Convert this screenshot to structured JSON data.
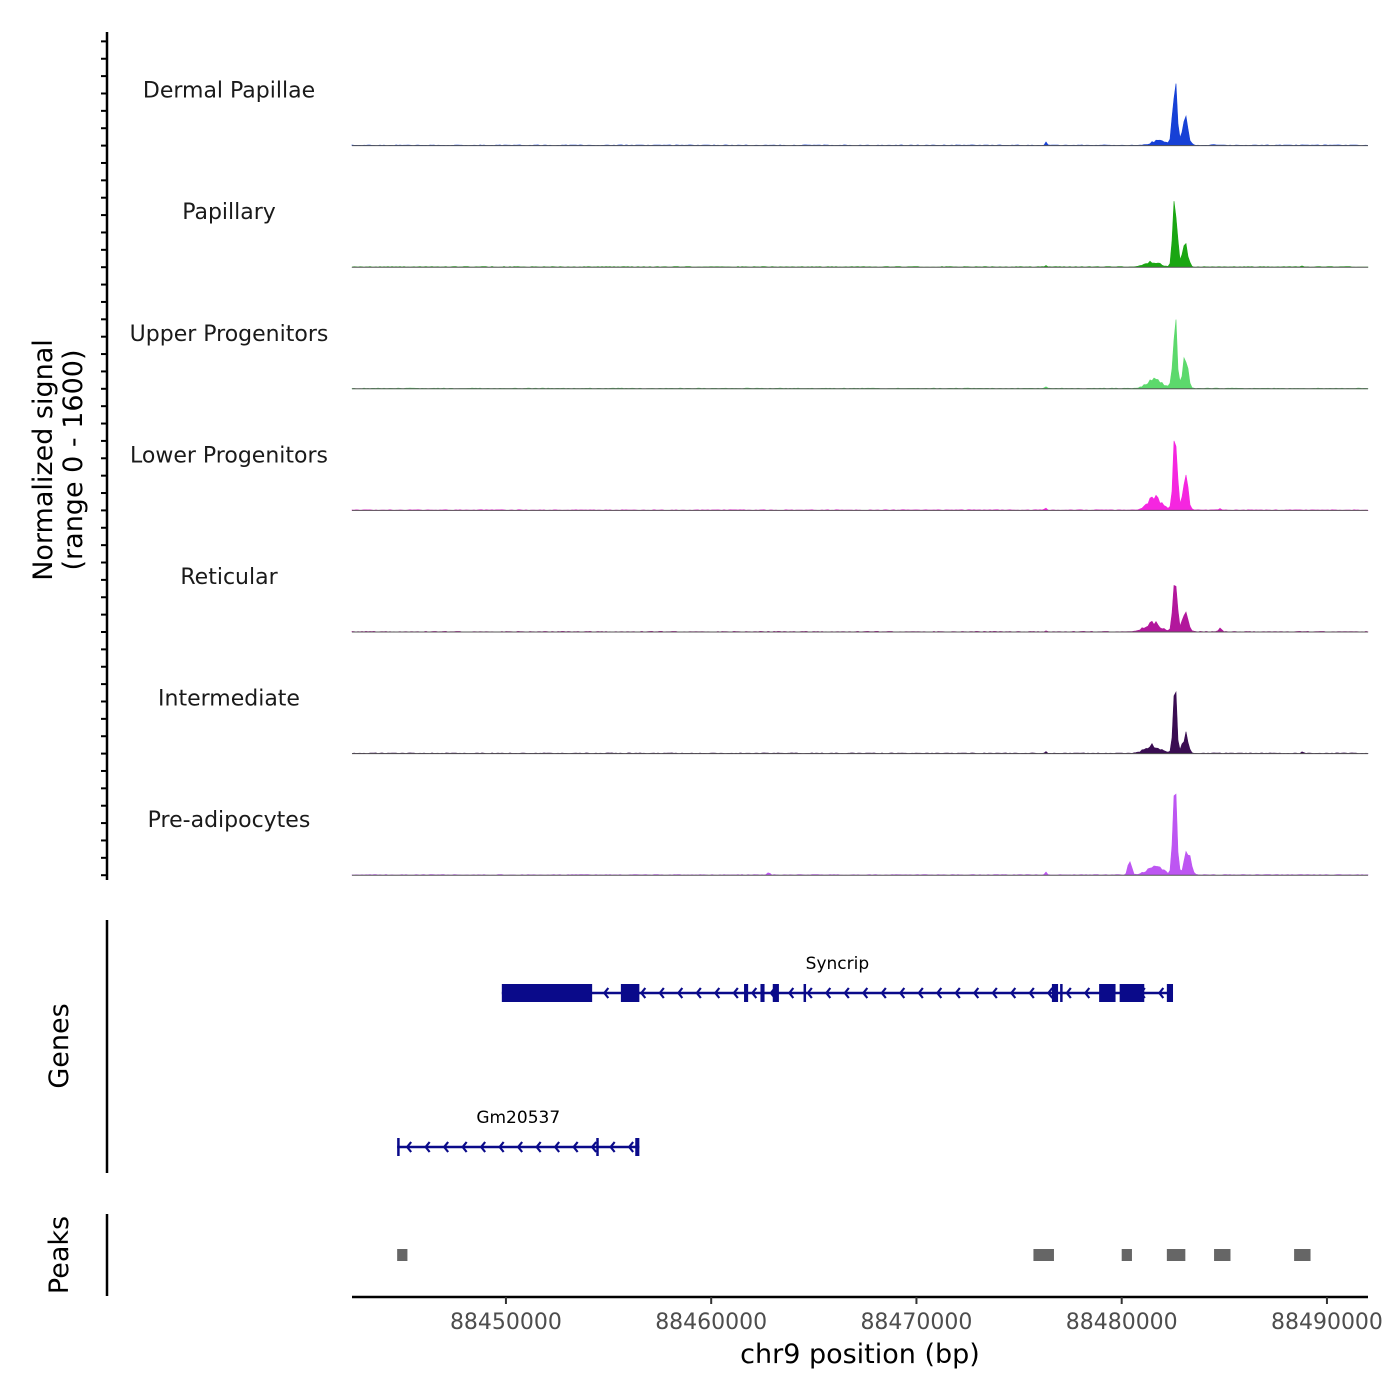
{
  "chart_data": {
    "type": "area",
    "title": "",
    "region": {
      "chromosome": "chr9",
      "start": 88442500,
      "end": 88492000
    },
    "signal_panel": {
      "ylabel_line1": "Normalized signal",
      "ylabel_line2": "(range 0 - 1600)",
      "ylim": [
        0,
        1600
      ],
      "tracks": [
        {
          "name": "Dermal Papillae",
          "color": "#1741d6",
          "peaks": [
            [
              88476300,
              60,
              70
            ],
            [
              88481800,
              90,
              500
            ],
            [
              88482600,
              1500,
              150
            ],
            [
              88483100,
              500,
              200
            ],
            [
              88484500,
              30,
              100
            ]
          ]
        },
        {
          "name": "Papillary",
          "color": "#1aa612",
          "peaks": [
            [
              88476300,
              30,
              70
            ],
            [
              88481500,
              100,
              500
            ],
            [
              88482600,
              1500,
              140
            ],
            [
              88483100,
              500,
              180
            ],
            [
              88488800,
              15,
              80
            ]
          ]
        },
        {
          "name": "Upper Progenitors",
          "color": "#5cd96c",
          "peaks": [
            [
              88476300,
              30,
              70
            ],
            [
              88481600,
              200,
              500
            ],
            [
              88482600,
              1500,
              140
            ],
            [
              88483100,
              600,
              180
            ]
          ]
        },
        {
          "name": "Lower Progenitors",
          "color": "#f526e0",
          "peaks": [
            [
              88476300,
              40,
              70
            ],
            [
              88481600,
              300,
              450
            ],
            [
              88482600,
              1500,
              140
            ],
            [
              88483100,
              700,
              180
            ],
            [
              88484800,
              40,
              80
            ]
          ]
        },
        {
          "name": "Reticular",
          "color": "#b2179c",
          "peaks": [
            [
              88476300,
              20,
              70
            ],
            [
              88481500,
              200,
              500
            ],
            [
              88482600,
              1300,
              140
            ],
            [
              88483100,
              500,
              180
            ],
            [
              88484800,
              100,
              80
            ]
          ]
        },
        {
          "name": "Intermediate",
          "color": "#3a0d52",
          "peaks": [
            [
              88476300,
              30,
              70
            ],
            [
              88481500,
              160,
              500
            ],
            [
              88482600,
              1200,
              130
            ],
            [
              88483100,
              400,
              170
            ],
            [
              88488800,
              30,
              70
            ]
          ]
        },
        {
          "name": "Pre-adipocytes",
          "color": "#bd56f2",
          "peaks": [
            [
              88462800,
              60,
              80
            ],
            [
              88476300,
              60,
              70
            ],
            [
              88480400,
              350,
              120
            ],
            [
              88481600,
              200,
              500
            ],
            [
              88482600,
              1600,
              140
            ],
            [
              88483200,
              600,
              200
            ]
          ]
        }
      ]
    },
    "genes_panel": {
      "title": "Genes",
      "color": "#0a0a8a",
      "genes": [
        {
          "name": "Syncrip",
          "start": 88449800,
          "end": 88482500,
          "strand": "-",
          "exons": [
            [
              88449800,
              88454200
            ],
            [
              88455600,
              88456500
            ],
            [
              88461600,
              88461800
            ],
            [
              88462400,
              88462600
            ],
            [
              88463000,
              88463300
            ],
            [
              88464500,
              88464600
            ],
            [
              88476600,
              88476900
            ],
            [
              88477000,
              88477100
            ],
            [
              88478900,
              88479700
            ],
            [
              88479900,
              88481100
            ],
            [
              88482200,
              88482500
            ]
          ]
        },
        {
          "name": "Gm20537",
          "start": 88444700,
          "end": 88456500,
          "strand": "-",
          "exons": [
            [
              88444700,
              88444800
            ],
            [
              88454400,
              88454500
            ],
            [
              88456300,
              88456500
            ]
          ]
        }
      ]
    },
    "peaks_panel": {
      "title": "Peaks",
      "color": "#666666",
      "regions": [
        [
          88444700,
          88445200
        ],
        [
          88475700,
          88476700
        ],
        [
          88480000,
          88480500
        ],
        [
          88482200,
          88483100
        ],
        [
          88484500,
          88485300
        ],
        [
          88488400,
          88489200
        ]
      ]
    },
    "x_axis": {
      "label": "chr9 position (bp)",
      "ticks": [
        88450000,
        88460000,
        88470000,
        88480000,
        88490000
      ],
      "tick_labels": [
        "88450000",
        "88460000",
        "88470000",
        "88480000",
        "88490000"
      ]
    }
  }
}
